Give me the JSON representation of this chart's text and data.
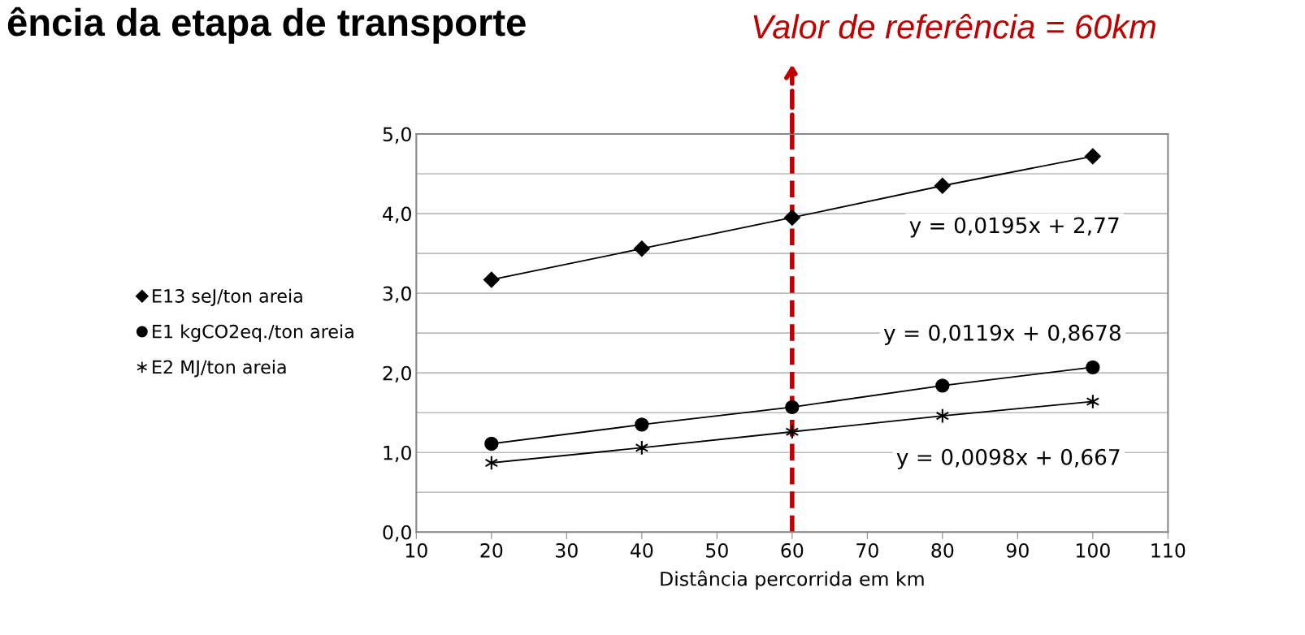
{
  "chart_data": {
    "type": "line",
    "title": "ência da etapa de transporte",
    "xlabel": "Distância percorrida em km",
    "x": [
      20,
      40,
      60,
      80,
      100
    ],
    "series": [
      {
        "name": "E13 seJ/ton areia",
        "color": "#000000",
        "marker": "diamond",
        "values": [
          3.17,
          3.56,
          3.95,
          4.35,
          4.72
        ]
      },
      {
        "name": "E1 kgCO2eq./ton areia",
        "color": "#000000",
        "marker": "circle",
        "values": [
          1.11,
          1.35,
          1.57,
          1.84,
          2.07
        ]
      },
      {
        "name": "E2 MJ/ton areia",
        "color": "#000000",
        "marker": "cross",
        "values": [
          0.87,
          1.06,
          1.26,
          1.46,
          1.64
        ]
      }
    ],
    "xlim": [
      10,
      110
    ],
    "xticks": [
      10,
      20,
      30,
      40,
      50,
      60,
      70,
      80,
      90,
      100,
      110
    ],
    "ylim": [
      0,
      5
    ],
    "yticks": [
      {
        "value": 0,
        "label": "0,0"
      },
      {
        "value": 0.5,
        "label": null
      },
      {
        "value": 1,
        "label": "1,0"
      },
      {
        "value": 1.5,
        "label": null
      },
      {
        "value": 2,
        "label": "2,0"
      },
      {
        "value": 2.5,
        "label": null
      },
      {
        "value": 3,
        "label": "3,0"
      },
      {
        "value": 3.5,
        "label": null
      },
      {
        "value": 4,
        "label": "4,0"
      },
      {
        "value": 4.5,
        "label": null
      },
      {
        "value": 5,
        "label": "5,0"
      }
    ],
    "grid": "y",
    "legend": "left",
    "line_style": "solid",
    "ref_lines": [
      {
        "axis": "x",
        "value": 60,
        "label": "Valor de referência = 60km",
        "color": "#c00000",
        "line_style": "dashed"
      }
    ],
    "annotations": [
      "y = 0,0195x + 2,77",
      "y = 0,0119x + 0,8678",
      "y = 0,0098x + 0,667"
    ]
  }
}
